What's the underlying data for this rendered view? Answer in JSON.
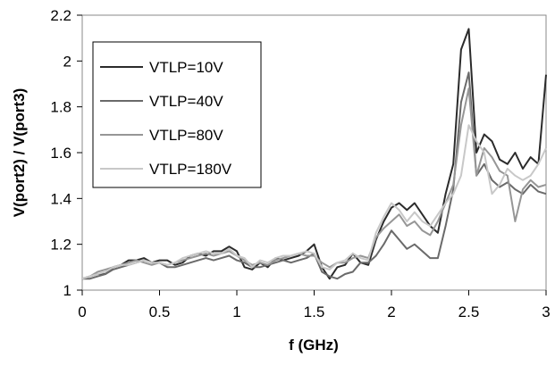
{
  "chart_data": {
    "type": "line",
    "title": "",
    "xlabel": "f (GHz)",
    "ylabel": "V(port2) / V(port3)",
    "xlim": [
      0,
      3
    ],
    "ylim": [
      1,
      2.2
    ],
    "x_ticks": [
      "0",
      "0.5",
      "1",
      "1.5",
      "2",
      "2.5",
      "3"
    ],
    "y_ticks": [
      "1",
      "1.2",
      "1.4",
      "1.6",
      "1.8",
      "2",
      "2.2"
    ],
    "grid": false,
    "legend_position": "top-left",
    "series": [
      {
        "name": "VTLP=10V",
        "color": "#2b2b2b",
        "x": [
          0,
          0.05,
          0.1,
          0.15,
          0.2,
          0.25,
          0.3,
          0.35,
          0.4,
          0.45,
          0.5,
          0.55,
          0.6,
          0.65,
          0.7,
          0.75,
          0.8,
          0.85,
          0.9,
          0.95,
          1.0,
          1.05,
          1.1,
          1.15,
          1.2,
          1.25,
          1.3,
          1.35,
          1.4,
          1.45,
          1.5,
          1.55,
          1.6,
          1.65,
          1.7,
          1.75,
          1.8,
          1.85,
          1.9,
          1.95,
          2.0,
          2.05,
          2.1,
          2.15,
          2.2,
          2.25,
          2.3,
          2.35,
          2.4,
          2.45,
          2.5,
          2.55,
          2.6,
          2.65,
          2.7,
          2.75,
          2.8,
          2.85,
          2.9,
          2.95,
          3.0
        ],
        "values": [
          1.05,
          1.06,
          1.07,
          1.07,
          1.1,
          1.11,
          1.13,
          1.13,
          1.14,
          1.12,
          1.13,
          1.13,
          1.11,
          1.12,
          1.15,
          1.16,
          1.15,
          1.17,
          1.17,
          1.19,
          1.17,
          1.1,
          1.09,
          1.12,
          1.1,
          1.14,
          1.13,
          1.14,
          1.15,
          1.17,
          1.2,
          1.1,
          1.05,
          1.1,
          1.11,
          1.16,
          1.12,
          1.11,
          1.22,
          1.3,
          1.36,
          1.38,
          1.35,
          1.38,
          1.33,
          1.28,
          1.25,
          1.42,
          1.55,
          2.05,
          2.14,
          1.6,
          1.68,
          1.65,
          1.57,
          1.55,
          1.6,
          1.53,
          1.58,
          1.55,
          1.94
        ]
      },
      {
        "name": "VTLP=40V",
        "color": "#6a6a6a",
        "x": [
          0,
          0.05,
          0.1,
          0.15,
          0.2,
          0.25,
          0.3,
          0.35,
          0.4,
          0.45,
          0.5,
          0.55,
          0.6,
          0.65,
          0.7,
          0.75,
          0.8,
          0.85,
          0.9,
          0.95,
          1.0,
          1.05,
          1.1,
          1.15,
          1.2,
          1.25,
          1.3,
          1.35,
          1.4,
          1.45,
          1.5,
          1.55,
          1.6,
          1.65,
          1.7,
          1.75,
          1.8,
          1.85,
          1.9,
          1.95,
          2.0,
          2.05,
          2.1,
          2.15,
          2.2,
          2.25,
          2.3,
          2.35,
          2.4,
          2.45,
          2.5,
          2.55,
          2.6,
          2.65,
          2.7,
          2.75,
          2.8,
          2.85,
          2.9,
          2.95,
          3.0
        ],
        "values": [
          1.05,
          1.05,
          1.06,
          1.07,
          1.09,
          1.1,
          1.11,
          1.12,
          1.13,
          1.12,
          1.12,
          1.1,
          1.1,
          1.11,
          1.12,
          1.13,
          1.14,
          1.13,
          1.14,
          1.15,
          1.13,
          1.12,
          1.1,
          1.1,
          1.11,
          1.12,
          1.13,
          1.12,
          1.13,
          1.14,
          1.16,
          1.08,
          1.06,
          1.05,
          1.07,
          1.08,
          1.12,
          1.12,
          1.15,
          1.2,
          1.26,
          1.22,
          1.18,
          1.2,
          1.17,
          1.14,
          1.14,
          1.28,
          1.44,
          1.82,
          1.95,
          1.5,
          1.55,
          1.48,
          1.45,
          1.47,
          1.44,
          1.42,
          1.46,
          1.43,
          1.42
        ]
      },
      {
        "name": "VTLP=80V",
        "color": "#969696",
        "x": [
          0,
          0.05,
          0.1,
          0.15,
          0.2,
          0.25,
          0.3,
          0.35,
          0.4,
          0.45,
          0.5,
          0.55,
          0.6,
          0.65,
          0.7,
          0.75,
          0.8,
          0.85,
          0.9,
          0.95,
          1.0,
          1.05,
          1.1,
          1.15,
          1.2,
          1.25,
          1.3,
          1.35,
          1.4,
          1.45,
          1.5,
          1.55,
          1.6,
          1.65,
          1.7,
          1.75,
          1.8,
          1.85,
          1.9,
          1.95,
          2.0,
          2.05,
          2.1,
          2.15,
          2.2,
          2.25,
          2.3,
          2.35,
          2.4,
          2.45,
          2.5,
          2.55,
          2.6,
          2.65,
          2.7,
          2.75,
          2.8,
          2.85,
          2.9,
          2.95,
          3.0
        ],
        "values": [
          1.05,
          1.06,
          1.08,
          1.09,
          1.1,
          1.11,
          1.12,
          1.13,
          1.12,
          1.11,
          1.12,
          1.11,
          1.12,
          1.13,
          1.14,
          1.15,
          1.16,
          1.15,
          1.16,
          1.17,
          1.15,
          1.13,
          1.11,
          1.12,
          1.11,
          1.13,
          1.14,
          1.15,
          1.16,
          1.15,
          1.15,
          1.12,
          1.1,
          1.12,
          1.12,
          1.14,
          1.15,
          1.14,
          1.23,
          1.27,
          1.3,
          1.33,
          1.28,
          1.3,
          1.26,
          1.24,
          1.3,
          1.38,
          1.46,
          1.72,
          1.88,
          1.5,
          1.62,
          1.58,
          1.52,
          1.5,
          1.3,
          1.44,
          1.48,
          1.45,
          1.46
        ]
      },
      {
        "name": "VTLP=180V",
        "color": "#c8c8c8",
        "x": [
          0,
          0.05,
          0.1,
          0.15,
          0.2,
          0.25,
          0.3,
          0.35,
          0.4,
          0.45,
          0.5,
          0.55,
          0.6,
          0.65,
          0.7,
          0.75,
          0.8,
          0.85,
          0.9,
          0.95,
          1.0,
          1.05,
          1.1,
          1.15,
          1.2,
          1.25,
          1.3,
          1.35,
          1.4,
          1.45,
          1.5,
          1.55,
          1.6,
          1.65,
          1.7,
          1.75,
          1.8,
          1.85,
          1.9,
          1.95,
          2.0,
          2.05,
          2.1,
          2.15,
          2.2,
          2.25,
          2.3,
          2.35,
          2.4,
          2.45,
          2.5,
          2.55,
          2.6,
          2.65,
          2.7,
          2.75,
          2.8,
          2.85,
          2.9,
          2.95,
          3.0
        ],
        "values": [
          1.05,
          1.06,
          1.07,
          1.08,
          1.1,
          1.11,
          1.11,
          1.12,
          1.13,
          1.12,
          1.12,
          1.11,
          1.12,
          1.14,
          1.15,
          1.16,
          1.17,
          1.16,
          1.16,
          1.18,
          1.15,
          1.14,
          1.1,
          1.13,
          1.12,
          1.14,
          1.15,
          1.15,
          1.16,
          1.17,
          1.16,
          1.1,
          1.09,
          1.12,
          1.13,
          1.16,
          1.14,
          1.13,
          1.25,
          1.32,
          1.38,
          1.35,
          1.3,
          1.34,
          1.3,
          1.28,
          1.33,
          1.38,
          1.42,
          1.5,
          1.72,
          1.65,
          1.6,
          1.42,
          1.46,
          1.53,
          1.5,
          1.48,
          1.5,
          1.55,
          1.62
        ]
      }
    ]
  }
}
